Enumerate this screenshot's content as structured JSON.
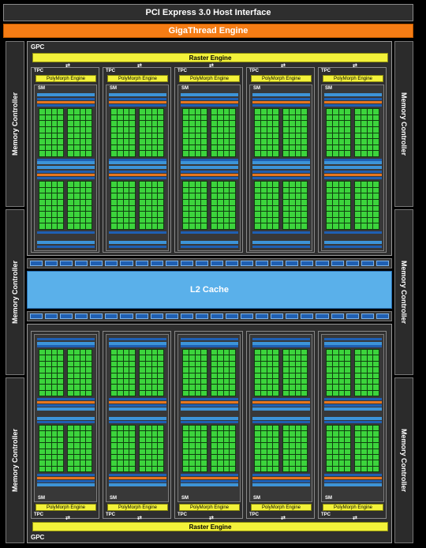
{
  "header": {
    "title": "PCI Express 3.0 Host Interface",
    "engine": "GigaThread Engine"
  },
  "memory_controller_label": "Memory Controller",
  "gpc_label": "GPC",
  "raster_label": "Raster Engine",
  "tpc_label": "TPC",
  "polymorph_label": "PolyMorph Engine",
  "sm_label": "SM",
  "l2_label": "L2 Cache",
  "arrow_glyph": "⇄",
  "colors": {
    "background": "#000000",
    "host_interface": "#2e2e2e",
    "gigathread": "#f57c14",
    "raster": "#f3f23a",
    "cores": "#3cd43c",
    "cache": "#5ab0ea"
  }
}
